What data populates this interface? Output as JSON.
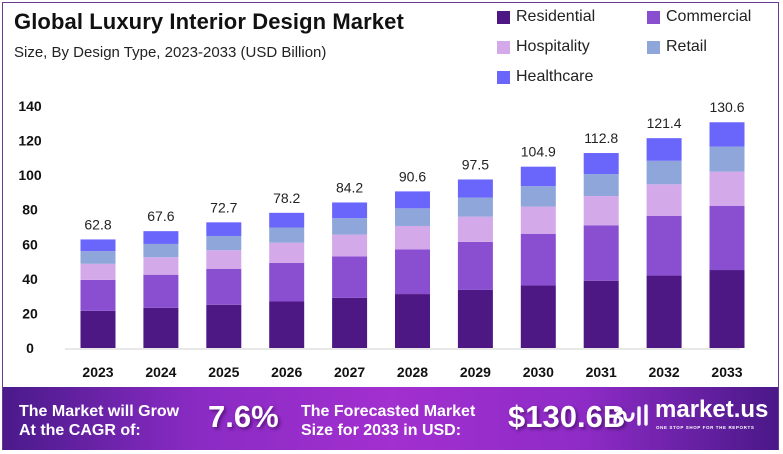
{
  "chart_data": {
    "type": "bar",
    "stacked": true,
    "title": "Global Luxury Interior Design Market",
    "subtitle": "Size, By Design Type, 2023-2033 (USD Billion)",
    "xlabel": "",
    "ylabel": "",
    "ylim": [
      0,
      140
    ],
    "yticks": [
      0,
      20,
      40,
      60,
      80,
      100,
      120,
      140
    ],
    "grid": false,
    "legend_position": "top-right",
    "categories": [
      "2023",
      "2024",
      "2025",
      "2026",
      "2027",
      "2028",
      "2029",
      "2030",
      "2031",
      "2032",
      "2033"
    ],
    "totals": [
      62.8,
      67.6,
      72.7,
      78.2,
      84.2,
      90.6,
      97.5,
      104.9,
      112.8,
      121.4,
      130.6
    ],
    "total_labels": [
      "62.8",
      "67.6",
      "72.7",
      "78.2",
      "84.2",
      "90.6",
      "97.5",
      "104.9",
      "112.8",
      "121.4",
      "130.6"
    ],
    "series": [
      {
        "name": "Residential",
        "color": "#4e1884",
        "values": [
          21.5,
          23.2,
          25.0,
          26.9,
          29.0,
          31.2,
          33.6,
          36.2,
          38.9,
          41.9,
          45.1
        ]
      },
      {
        "name": "Commercial",
        "color": "#8a4fd0",
        "values": [
          17.9,
          19.2,
          20.7,
          22.3,
          24.0,
          25.8,
          27.8,
          29.9,
          32.1,
          34.6,
          37.2
        ]
      },
      {
        "name": "Hospitality",
        "color": "#d4a9ea",
        "values": [
          9.3,
          10.1,
          10.9,
          11.7,
          12.6,
          13.6,
          14.6,
          15.7,
          16.9,
          18.2,
          19.7
        ]
      },
      {
        "name": "Retail",
        "color": "#8fa6da",
        "values": [
          7.3,
          7.7,
          8.2,
          8.8,
          9.5,
          10.2,
          11.0,
          11.8,
          12.7,
          13.6,
          14.5
        ]
      },
      {
        "name": "Healthcare",
        "color": "#6b66fb",
        "values": [
          6.8,
          7.4,
          7.9,
          8.5,
          9.1,
          9.8,
          10.5,
          11.3,
          12.2,
          13.1,
          14.1
        ]
      }
    ]
  },
  "header": {
    "title": "Global Luxury Interior Design Market",
    "subtitle": "Size, By Design Type, 2023-2033 (USD Billion)"
  },
  "legend": [
    {
      "label": "Residential",
      "color": "#4e1884"
    },
    {
      "label": "Commercial",
      "color": "#8a4fd0"
    },
    {
      "label": "Hospitality",
      "color": "#d4a9ea"
    },
    {
      "label": "Retail",
      "color": "#8fa6da"
    },
    {
      "label": "Healthcare",
      "color": "#6b66fb"
    }
  ],
  "banner": {
    "cagr_text_line1": "The Market will Grow",
    "cagr_text_line2": "At the CAGR of:",
    "cagr_value": "7.6%",
    "forecast_text_line1": "The Forecasted Market",
    "forecast_text_line2": "Size for 2033 in USD:",
    "forecast_value": "$130.6B",
    "brand_name": "market.us",
    "brand_tagline": "ONE STOP SHOP FOR THE REPORTS"
  }
}
